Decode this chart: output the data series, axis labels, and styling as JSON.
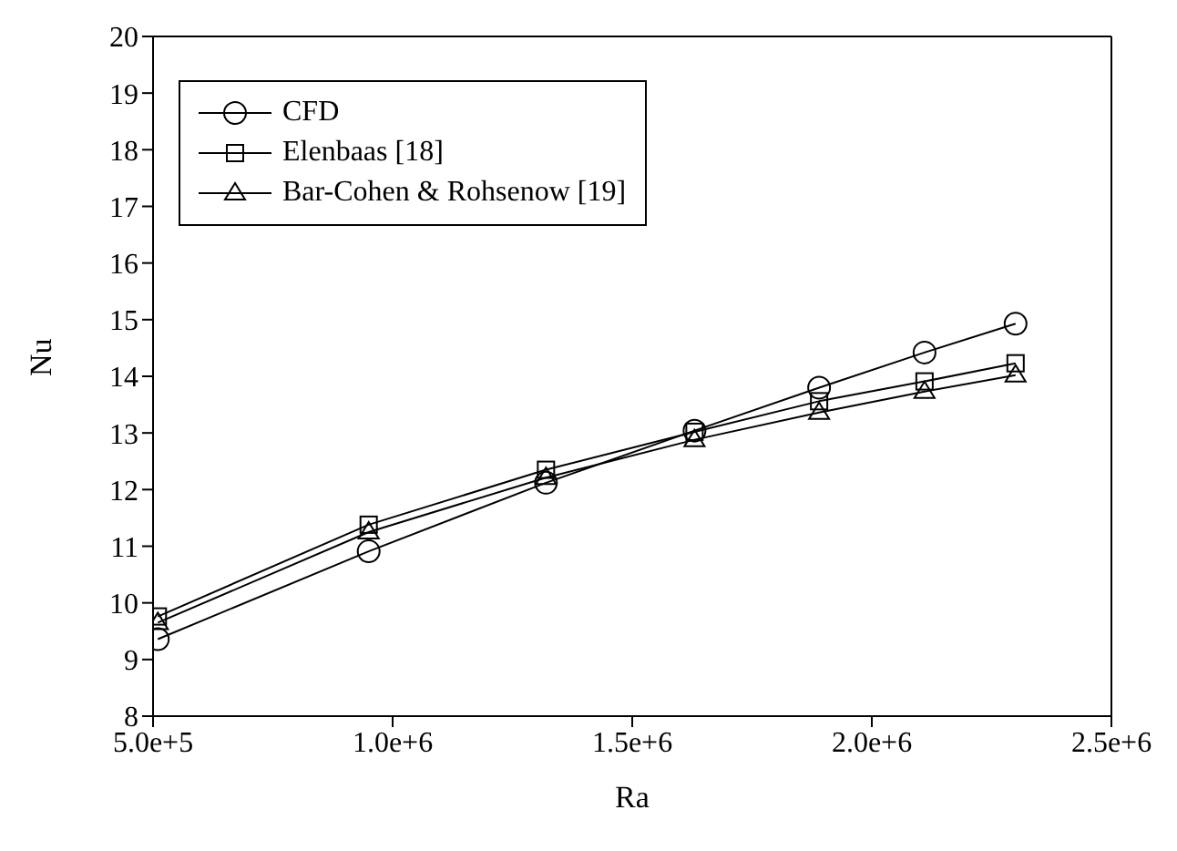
{
  "chart_data": {
    "type": "line",
    "xlabel": "Ra",
    "ylabel": "Nu",
    "x": [
      510000,
      950000,
      1320000,
      1630000,
      1890000,
      2110000,
      2300000
    ],
    "series": [
      {
        "name": "CFD",
        "color": "#000000",
        "marker": "circle",
        "values": [
          9.36,
          10.91,
          12.12,
          13.04,
          13.8,
          14.42,
          14.93
        ]
      },
      {
        "name": "Elenbaas [18]",
        "color": "#000000",
        "marker": "square",
        "values": [
          9.76,
          11.38,
          12.35,
          13.02,
          13.56,
          13.91,
          14.23
        ]
      },
      {
        "name": "Bar-Cohen & Rohsenow [19]",
        "color": "#000000",
        "marker": "triangle",
        "values": [
          9.65,
          11.25,
          12.21,
          12.88,
          13.36,
          13.73,
          14.02
        ]
      }
    ],
    "xlim": [
      500000,
      2500000
    ],
    "xticks": [
      {
        "value": 500000,
        "label": "5.0e+5"
      },
      {
        "value": 1000000,
        "label": "1.0e+6"
      },
      {
        "value": 1500000,
        "label": "1.5e+6"
      },
      {
        "value": 2000000,
        "label": "2.0e+6"
      },
      {
        "value": 2500000,
        "label": "2.5e+6"
      }
    ],
    "ylim": [
      8,
      20
    ],
    "yticks": [
      8,
      9,
      10,
      11,
      12,
      13,
      14,
      15,
      16,
      17,
      18,
      19,
      20
    ],
    "legend": "top left",
    "line_style": "solid"
  }
}
